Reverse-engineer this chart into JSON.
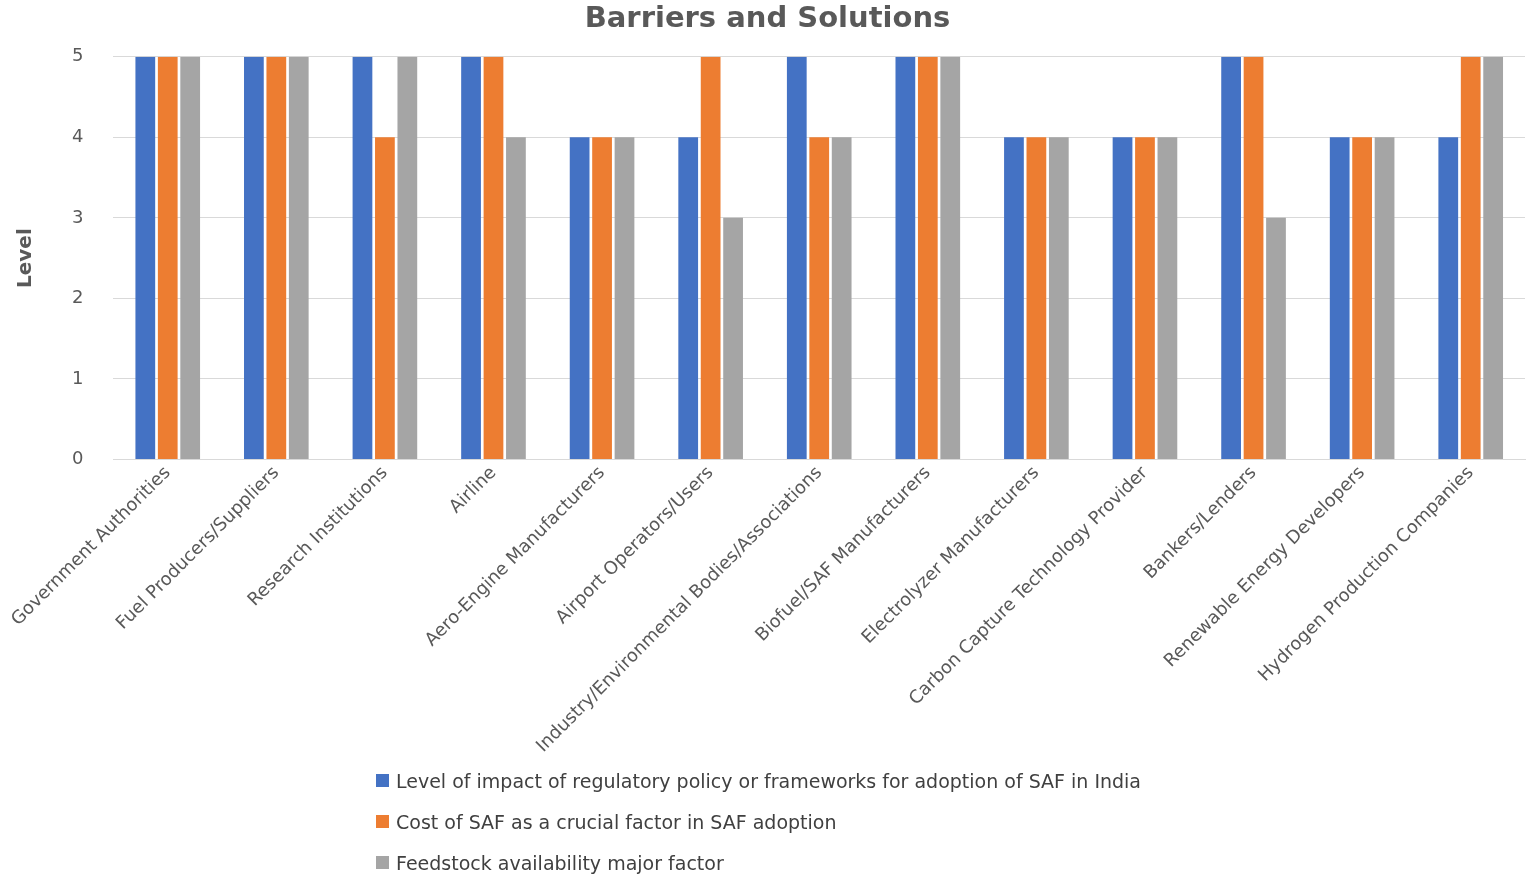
{
  "chart_data": {
    "type": "bar",
    "title": "Barriers and Solutions",
    "ylabel": "Level",
    "categories": [
      "Government Authorities",
      "Fuel Producers/Suppliers",
      "Research Institutions",
      "Airline",
      "Aero-Engine Manufacturers",
      "Airport Operators/Users",
      "Industry/Environmental Bodies/Associations",
      "Biofuel/SAF Manufacturers",
      "Electrolyzer Manufacturers",
      "Carbon Capture Technology Provider",
      "Bankers/Lenders",
      "Renewable Energy Developers",
      "Hydrogen Production Companies"
    ],
    "series": [
      {
        "name": "Level of impact of regulatory policy or frameworks for adoption of SAF in India",
        "color": "#4472c4",
        "values": [
          5,
          5,
          5,
          5,
          4,
          4,
          5,
          5,
          4,
          4,
          5,
          4,
          4
        ]
      },
      {
        "name": "Cost of SAF as a crucial factor in SAF adoption",
        "color": "#ed7d31",
        "values": [
          5,
          5,
          4,
          5,
          4,
          5,
          4,
          5,
          4,
          4,
          5,
          4,
          5
        ]
      },
      {
        "name": "Feedstock availability major factor",
        "color": "#a5a5a5",
        "values": [
          5,
          5,
          5,
          4,
          4,
          3,
          4,
          5,
          4,
          4,
          3,
          4,
          5
        ]
      }
    ],
    "ylim": [
      0,
      5
    ],
    "yticks": [
      0,
      1,
      2,
      3,
      4,
      5
    ],
    "grid": "y",
    "legend": "bottom"
  }
}
